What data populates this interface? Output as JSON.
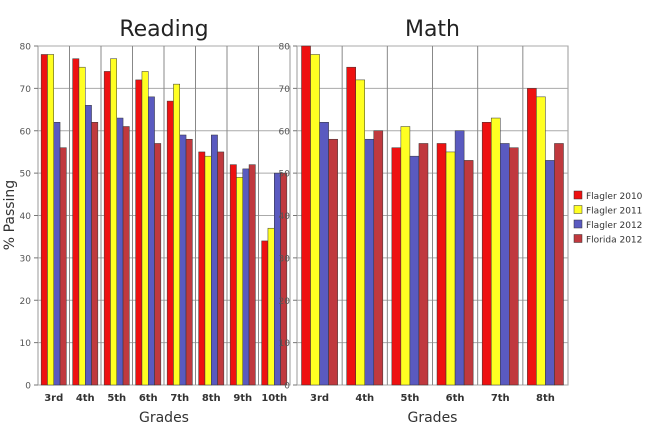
{
  "y_axis_label": "% Passing",
  "legend": {
    "placement": "right",
    "entries": [
      {
        "name": "Flagler 2010",
        "color": "#ee1111"
      },
      {
        "name": "Flagler 2011",
        "color": "#ffff22"
      },
      {
        "name": "Flagler 2012",
        "color": "#5a5ac0"
      },
      {
        "name": "Florida 2012",
        "color": "#c0393e"
      }
    ]
  },
  "chart_data": [
    {
      "type": "bar",
      "title": "Reading",
      "xlabel": "Grades",
      "ylabel": "% Passing",
      "ylim": [
        0,
        80
      ],
      "yticks": [
        0,
        10,
        20,
        30,
        40,
        50,
        60,
        70,
        80
      ],
      "grid": true,
      "categories": [
        "3rd",
        "4th",
        "5th",
        "6th",
        "7th",
        "8th",
        "9th",
        "10th"
      ],
      "series": [
        {
          "name": "Flagler 2010",
          "color": "#ee1111",
          "values": [
            78,
            77,
            74,
            72,
            67,
            55,
            52,
            34
          ]
        },
        {
          "name": "Flagler 2011",
          "color": "#ffff22",
          "values": [
            78,
            75,
            77,
            74,
            71,
            54,
            49,
            37
          ]
        },
        {
          "name": "Flagler 2012",
          "color": "#5a5ac0",
          "values": [
            62,
            66,
            63,
            68,
            59,
            59,
            51,
            50
          ]
        },
        {
          "name": "Florida 2012",
          "color": "#c0393e",
          "values": [
            56,
            62,
            61,
            57,
            58,
            55,
            52,
            50
          ]
        }
      ]
    },
    {
      "type": "bar",
      "title": "Math",
      "xlabel": "Grades",
      "ylabel": "",
      "ylim": [
        0,
        80
      ],
      "yticks": [
        0,
        10,
        20,
        30,
        40,
        50,
        60,
        70,
        80
      ],
      "grid": true,
      "categories": [
        "3rd",
        "4th",
        "5th",
        "6th",
        "7th",
        "8th"
      ],
      "series": [
        {
          "name": "Flagler 2010",
          "color": "#ee1111",
          "values": [
            80,
            75,
            56,
            57,
            62,
            70
          ]
        },
        {
          "name": "Flagler 2011",
          "color": "#ffff22",
          "values": [
            78,
            72,
            61,
            55,
            63,
            68
          ]
        },
        {
          "name": "Flagler 2012",
          "color": "#5a5ac0",
          "values": [
            62,
            58,
            54,
            60,
            57,
            53
          ]
        },
        {
          "name": "Florida 2012",
          "color": "#c0393e",
          "values": [
            58,
            60,
            57,
            53,
            56,
            57
          ]
        }
      ]
    }
  ]
}
